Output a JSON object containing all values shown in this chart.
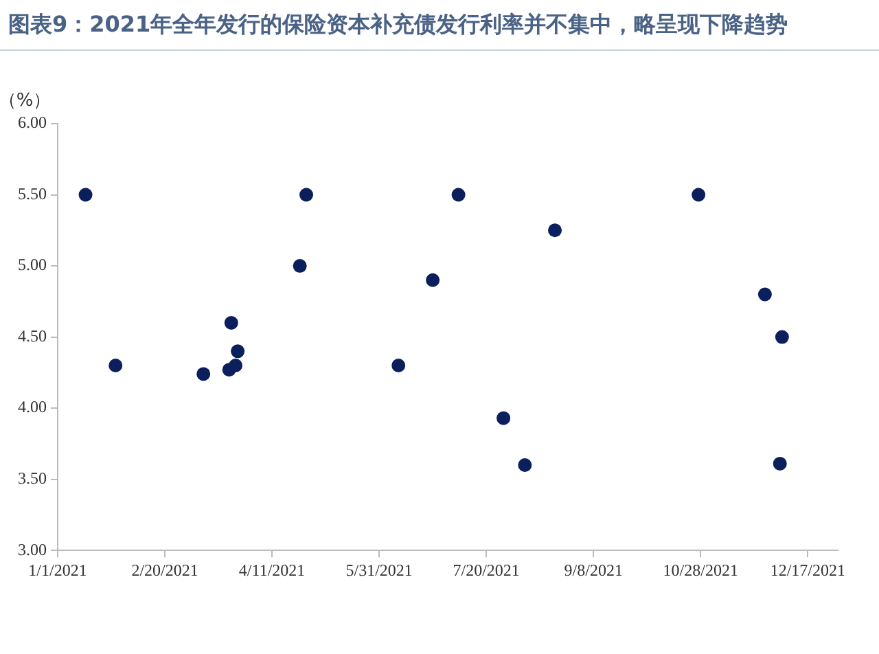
{
  "chart_data": {
    "type": "scatter",
    "title": "图表9：2021年全年发行的保险资本补充债发行利率并不集中，略呈现下降趋势",
    "ylabel": "（%）",
    "x": [
      "2021-01-14",
      "2021-01-28",
      "2021-03-10",
      "2021-03-22",
      "2021-03-23",
      "2021-03-25",
      "2021-03-26",
      "2021-04-24",
      "2021-04-27",
      "2021-06-09",
      "2021-06-25",
      "2021-07-07",
      "2021-07-28",
      "2021-08-07",
      "2021-08-21",
      "2021-10-27",
      "2021-11-27",
      "2021-12-05",
      "2021-12-04"
    ],
    "series": [
      {
        "color": "#0b1f5c",
        "values": [
          5.5,
          4.3,
          4.24,
          4.27,
          4.6,
          4.3,
          4.4,
          5.0,
          5.5,
          4.3,
          4.9,
          5.5,
          3.93,
          3.6,
          5.25,
          5.5,
          4.8,
          4.5,
          3.61
        ]
      }
    ],
    "xlim": [
      "2021-01-01",
      "2021-12-31"
    ],
    "xticks": [
      {
        "value": "2021-01-01",
        "label": "1/1/2021"
      },
      {
        "value": "2021-02-20",
        "label": "2/20/2021"
      },
      {
        "value": "2021-04-11",
        "label": "4/11/2021"
      },
      {
        "value": "2021-05-31",
        "label": "5/31/2021"
      },
      {
        "value": "2021-07-20",
        "label": "7/20/2021"
      },
      {
        "value": "2021-09-08",
        "label": "9/8/2021"
      },
      {
        "value": "2021-10-28",
        "label": "10/28/2021"
      },
      {
        "value": "2021-12-17",
        "label": "12/17/2021"
      }
    ],
    "ylim": [
      3,
      6
    ],
    "yticks": [
      {
        "value": 3,
        "label": "3.00"
      },
      {
        "value": 3.5,
        "label": "3.50"
      },
      {
        "value": 4,
        "label": "4.00"
      },
      {
        "value": 4.5,
        "label": "4.50"
      },
      {
        "value": 5,
        "label": "5.00"
      },
      {
        "value": 5.5,
        "label": "5.50"
      },
      {
        "value": 6,
        "label": "6.00"
      }
    ],
    "grid": false,
    "legend": false,
    "marker": "circle"
  }
}
